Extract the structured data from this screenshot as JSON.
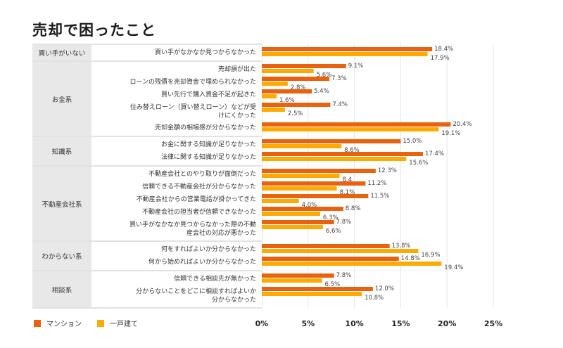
{
  "chart_data": {
    "type": "bar",
    "orientation": "horizontal",
    "title": "売却で困ったこと",
    "xlim": [
      0,
      25
    ],
    "xticks": [
      "0%",
      "5%",
      "10%",
      "15%",
      "20%",
      "25%"
    ],
    "xtick_values": [
      0,
      5,
      10,
      15,
      20,
      25
    ],
    "grid": true,
    "legend_position": "bottom-left",
    "colors": {
      "mansion": "#e8620f",
      "house": "#ffaa00"
    },
    "series": [
      {
        "name": "マンション",
        "key": "mansion"
      },
      {
        "name": "一戸建て",
        "key": "house"
      }
    ],
    "groups": [
      {
        "category": "買い手がいない",
        "items": [
          {
            "label": [
              "買い手がなかなか見つからなかった"
            ],
            "mansion": 18.4,
            "house": 17.9,
            "mansion_label": "18.4%",
            "house_label": "17.9%"
          }
        ]
      },
      {
        "category": "お金系",
        "items": [
          {
            "label": [
              "売却損が出た"
            ],
            "mansion": 9.1,
            "house": 5.6,
            "mansion_label": "9.1%",
            "house_label": "5.6%"
          },
          {
            "label": [
              "ローンの残債を売却資金で埋められなかった"
            ],
            "mansion": 7.3,
            "house": 2.8,
            "mansion_label": "7.3%",
            "house_label": "2.8%"
          },
          {
            "label": [
              "買い先行で購入資金不足が起きた"
            ],
            "mansion": 5.4,
            "house": 1.6,
            "mansion_label": "5.4%",
            "house_label": "1.6%"
          },
          {
            "label": [
              "住み替えローン（買い替えローン）などが受",
              "けにくかった"
            ],
            "mansion": 7.4,
            "house": 2.5,
            "mansion_label": "7.4%",
            "house_label": "2.5%"
          },
          {
            "label": [
              "売却金額の相場感が分からなかった"
            ],
            "mansion": 20.4,
            "house": 19.1,
            "mansion_label": "20.4%",
            "house_label": "19.1%"
          }
        ]
      },
      {
        "category": "知識系",
        "items": [
          {
            "label": [
              "お金に関する知識が足りなかった"
            ],
            "mansion": 15.0,
            "house": 8.6,
            "mansion_label": "15.0%",
            "house_label": "8.6%"
          },
          {
            "label": [
              "法律に関する知識が足りなかった"
            ],
            "mansion": 17.4,
            "house": 15.6,
            "mansion_label": "17.4%",
            "house_label": "15.6%"
          }
        ]
      },
      {
        "category": "不動産会社系",
        "items": [
          {
            "label": [
              "不動産会社とのやり取りが面倒だった"
            ],
            "mansion": 12.3,
            "house": 8.4,
            "mansion_label": "12.3%",
            "house_label": "8.4"
          },
          {
            "label": [
              "信頼できる不動産会社が分からなかった"
            ],
            "mansion": 11.2,
            "house": 8.1,
            "mansion_label": "11.2%",
            "house_label": "8.1%"
          },
          {
            "label": [
              "不動産会社からの営業電話が掛かってきた"
            ],
            "mansion": 11.5,
            "house": 4.0,
            "mansion_label": "11.5%",
            "house_label": "4.0%"
          },
          {
            "label": [
              "不動産会社の担当者が信頼できなかった"
            ],
            "mansion": 8.8,
            "house": 6.3,
            "mansion_label": "8.8%",
            "house_label": "6.3%"
          },
          {
            "label": [
              "買い手がなかなか見つからなかった際の不動",
              "産会社の対応が悪かった"
            ],
            "mansion": 7.8,
            "house": 6.6,
            "mansion_label": "7.8%",
            "house_label": "6.6%"
          }
        ]
      },
      {
        "category": "わからない系",
        "items": [
          {
            "label": [
              "何をすればよいか分からなかった"
            ],
            "mansion": 13.8,
            "house": 16.9,
            "mansion_label": "13.8%",
            "house_label": "16.9%"
          },
          {
            "label": [
              "何から始めればよいか分からなかった"
            ],
            "mansion": 14.8,
            "house": 19.4,
            "mansion_label": "14.8%",
            "house_label": "19.4%"
          }
        ]
      },
      {
        "category": "相談系",
        "items": [
          {
            "label": [
              "信頼できる相談先が無かった"
            ],
            "mansion": 7.8,
            "house": 6.5,
            "mansion_label": "7.8%",
            "house_label": "6.5%"
          },
          {
            "label": [
              "分からないことをどこに相談すればよいか",
              "分からなかった"
            ],
            "mansion": 12.0,
            "house": 10.8,
            "mansion_label": "12.0%",
            "house_label": "10.8%"
          }
        ]
      }
    ]
  }
}
